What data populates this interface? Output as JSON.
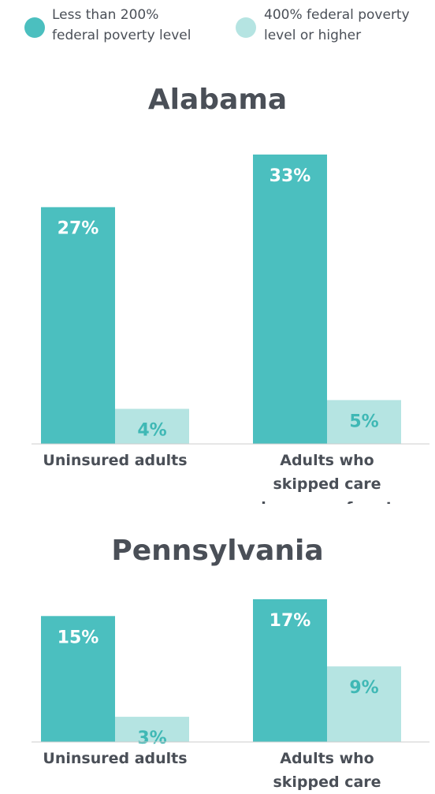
{
  "chart_data": [
    {
      "type": "bar",
      "title": "Alabama",
      "categories": [
        "Uninsured adults",
        "Adults who skipped care because of cost"
      ],
      "series": [
        {
          "name": "Less than 200% federal poverty level",
          "color": "#4bbfbf",
          "values": [
            27,
            33
          ],
          "value_labels": [
            "27%",
            "33%"
          ]
        },
        {
          "name": "400% federal poverty level or higher",
          "color": "#b5e4e2",
          "values": [
            4,
            5
          ],
          "value_labels": [
            "4%",
            "5%"
          ]
        }
      ],
      "ylim": [
        0,
        33
      ]
    },
    {
      "type": "bar",
      "title": "Pennsylvania",
      "categories": [
        "Uninsured adults",
        "Adults who skipped care because of cost"
      ],
      "series": [
        {
          "color": "#4bbfbf",
          "values": [
            15,
            17
          ],
          "value_labels": [
            "15%",
            "17%"
          ]
        },
        {
          "color": "#b5e4e2",
          "values": [
            3,
            9
          ],
          "value_labels": [
            "3%",
            "9%"
          ]
        }
      ],
      "ylim": [
        0,
        17
      ]
    }
  ]
}
